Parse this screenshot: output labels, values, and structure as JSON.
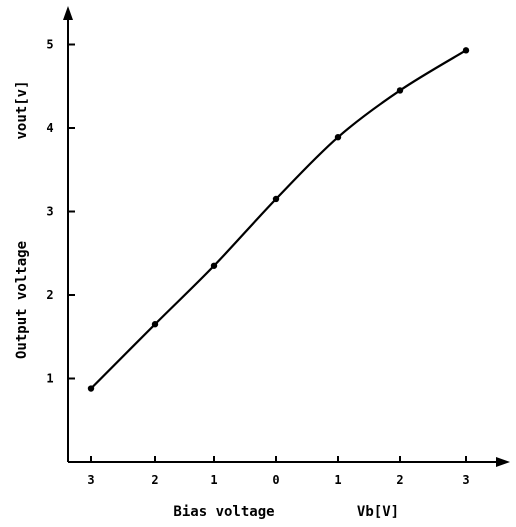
{
  "chart_data": {
    "type": "line",
    "x": [
      "3",
      "2",
      "1",
      "0",
      "1",
      "2",
      "3"
    ],
    "values": [
      0.88,
      1.65,
      2.35,
      3.15,
      3.89,
      4.45,
      4.93
    ],
    "xlabel": "Bias voltage",
    "xunit": "Vb[V]",
    "ylabel_outer": "Output voltage",
    "ylabel_inner": "vout[v]",
    "yticks": [
      1,
      2,
      3,
      4,
      5
    ],
    "ylim": [
      0,
      5.6
    ],
    "grid": false,
    "line_color": "#000000"
  }
}
